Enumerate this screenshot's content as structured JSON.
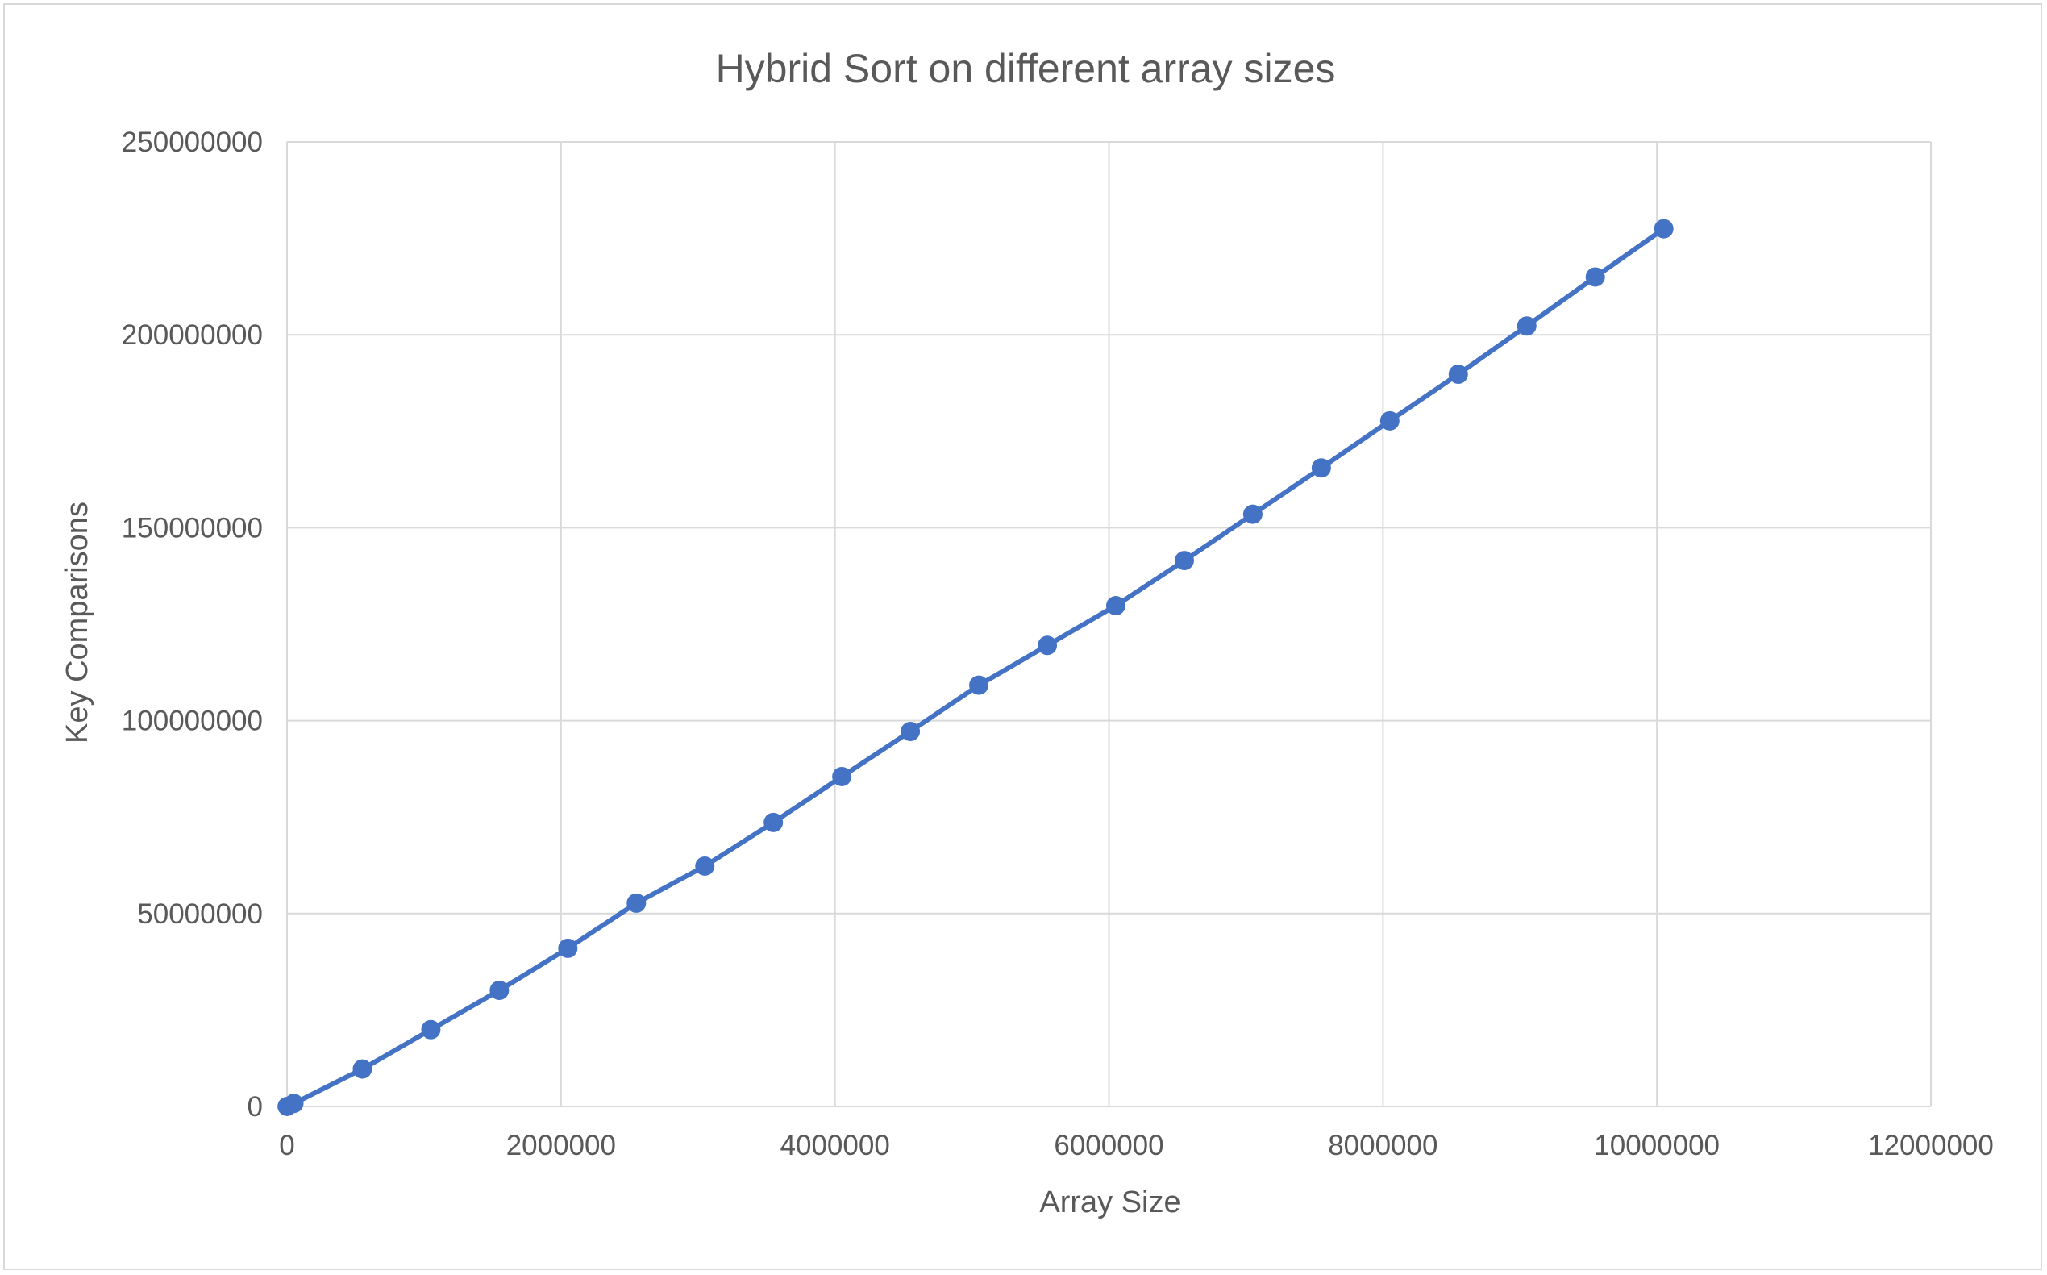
{
  "chart_data": {
    "type": "scatter",
    "title": "Hybrid Sort on different array sizes",
    "xlabel": "Array Size",
    "ylabel": "Key Comparisons",
    "xlim": [
      0,
      12000000
    ],
    "ylim": [
      0,
      250000000
    ],
    "x_ticks": [
      0,
      2000000,
      4000000,
      6000000,
      8000000,
      10000000,
      12000000
    ],
    "x_tick_labels": [
      "0",
      "2000000",
      "4000000",
      "6000000",
      "8000000",
      "10000000",
      "12000000"
    ],
    "y_ticks": [
      0,
      50000000,
      100000000,
      150000000,
      200000000,
      250000000
    ],
    "y_tick_labels": [
      "0",
      "50000000",
      "100000000",
      "150000000",
      "200000000",
      "250000000"
    ],
    "grid": true,
    "legend": "none",
    "line_style": "straight lines with markers",
    "series": [
      {
        "color": "#4472c4",
        "points": [
          {
            "x": 1000,
            "y": 12000
          },
          {
            "x": 50000,
            "y": 780000
          },
          {
            "x": 550000,
            "y": 9700000
          },
          {
            "x": 1050000,
            "y": 19900000
          },
          {
            "x": 1550000,
            "y": 30100000
          },
          {
            "x": 2050000,
            "y": 41000000
          },
          {
            "x": 2550000,
            "y": 52700000
          },
          {
            "x": 3050000,
            "y": 62300000
          },
          {
            "x": 3550000,
            "y": 73600000
          },
          {
            "x": 4050000,
            "y": 85500000
          },
          {
            "x": 4550000,
            "y": 97200000
          },
          {
            "x": 5050000,
            "y": 109200000
          },
          {
            "x": 5550000,
            "y": 119500000
          },
          {
            "x": 6050000,
            "y": 129800000
          },
          {
            "x": 6550000,
            "y": 141500000
          },
          {
            "x": 7050000,
            "y": 153500000
          },
          {
            "x": 7550000,
            "y": 165500000
          },
          {
            "x": 8050000,
            "y": 177700000
          },
          {
            "x": 8550000,
            "y": 189800000
          },
          {
            "x": 9050000,
            "y": 202300000
          },
          {
            "x": 9550000,
            "y": 215000000
          },
          {
            "x": 10050000,
            "y": 227500000
          }
        ]
      }
    ]
  }
}
